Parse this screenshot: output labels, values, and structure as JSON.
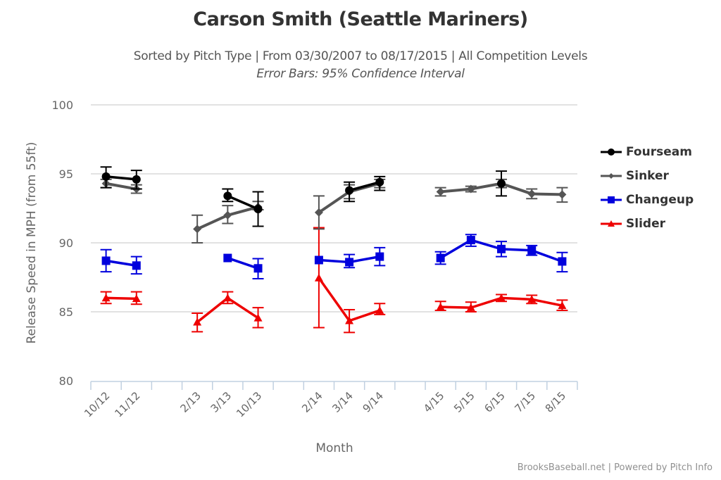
{
  "header": {
    "title": "Carson Smith (Seattle Mariners)",
    "subtitle": "Sorted by Pitch Type | From 03/30/2007 to 08/17/2015 | All Competition Levels",
    "subtitle2": "Error Bars: 95% Confidence Interval"
  },
  "footer": {
    "credit": "BrooksBaseball.net | Powered by Pitch Info"
  },
  "chart_data": {
    "type": "line",
    "title": "Carson Smith (Seattle Mariners)",
    "subtitle": "Sorted by Pitch Type | From 03/30/2007 to 08/17/2015 | All Competition Levels",
    "xlabel": "Month",
    "ylabel": "Release Speed in MPH (from 55ft)",
    "ylim": [
      80,
      100
    ],
    "yticks": [
      80,
      85,
      90,
      95,
      100
    ],
    "grid": true,
    "legend_position": "right",
    "error_bars": "95% Confidence Interval",
    "categories": [
      "10/12",
      "11/12",
      "",
      "2/13",
      "3/13",
      "10/13",
      "",
      "2/14",
      "3/14",
      "9/14",
      "",
      "4/15",
      "5/15",
      "6/15",
      "7/15",
      "8/15"
    ],
    "series": [
      {
        "name": "Fourseam",
        "color": "#000000",
        "marker": "circle",
        "values": [
          94.8,
          94.6,
          null,
          null,
          93.4,
          92.45,
          null,
          null,
          93.8,
          94.4,
          null,
          null,
          null,
          94.3,
          null,
          null
        ],
        "upper": [
          95.5,
          95.25,
          null,
          null,
          93.9,
          93.7,
          null,
          null,
          94.4,
          94.8,
          null,
          null,
          null,
          95.2,
          null,
          null
        ],
        "lower": [
          94.0,
          93.9,
          null,
          null,
          93.0,
          91.2,
          null,
          null,
          93.0,
          93.8,
          null,
          null,
          null,
          93.4,
          null,
          null
        ]
      },
      {
        "name": "Sinker",
        "color": "#555555",
        "marker": "diamond",
        "values": [
          94.3,
          93.9,
          null,
          91.0,
          92.0,
          92.6,
          null,
          92.2,
          93.7,
          94.3,
          null,
          93.7,
          93.9,
          94.3,
          93.55,
          93.5
        ],
        "upper": [
          94.6,
          94.2,
          null,
          92.0,
          92.7,
          93.0,
          null,
          93.4,
          94.2,
          94.6,
          null,
          94.0,
          94.1,
          94.6,
          93.9,
          94.0
        ],
        "lower": [
          94.0,
          93.6,
          null,
          90.0,
          91.4,
          92.4,
          null,
          91.0,
          93.2,
          94.0,
          null,
          93.4,
          93.7,
          94.0,
          93.2,
          92.95
        ]
      },
      {
        "name": "Changeup",
        "color": "#0000dd",
        "marker": "square",
        "values": [
          88.7,
          88.35,
          null,
          null,
          88.9,
          88.15,
          null,
          88.75,
          88.6,
          89.0,
          null,
          88.9,
          90.2,
          89.55,
          89.45,
          88.65
        ],
        "upper": [
          89.5,
          89.0,
          null,
          null,
          null,
          88.85,
          null,
          null,
          89.15,
          89.65,
          null,
          89.35,
          90.6,
          90.1,
          89.8,
          89.3
        ],
        "lower": [
          87.9,
          87.75,
          null,
          null,
          null,
          87.4,
          null,
          null,
          88.2,
          88.35,
          null,
          88.45,
          89.75,
          89.0,
          89.1,
          87.9
        ]
      },
      {
        "name": "Slider",
        "color": "#ee0000",
        "marker": "triangle",
        "values": [
          86.0,
          85.95,
          null,
          84.25,
          86.0,
          84.55,
          null,
          87.45,
          84.35,
          85.1,
          null,
          85.35,
          85.3,
          86.0,
          85.9,
          85.45
        ],
        "upper": [
          86.45,
          86.45,
          null,
          84.9,
          86.45,
          85.3,
          null,
          91.1,
          85.15,
          85.6,
          null,
          85.75,
          85.7,
          86.25,
          86.2,
          85.85
        ],
        "lower": [
          85.6,
          85.55,
          null,
          83.55,
          85.6,
          83.85,
          null,
          83.85,
          83.5,
          84.8,
          null,
          85.1,
          85.0,
          85.75,
          85.6,
          85.1
        ]
      }
    ]
  }
}
